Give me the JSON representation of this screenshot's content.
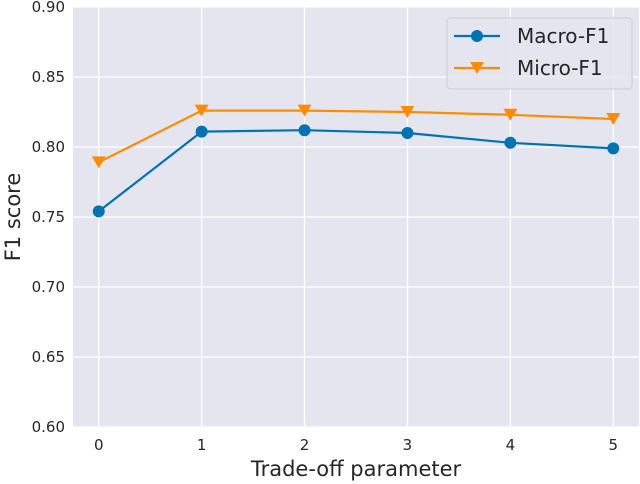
{
  "chart_data": {
    "type": "line",
    "title": "",
    "xlabel": "Trade-off parameter",
    "ylabel": "F1 score",
    "x": [
      0,
      1,
      2,
      3,
      4,
      5
    ],
    "x_tick_labels": [
      "0",
      "1",
      "2",
      "3",
      "4",
      "5"
    ],
    "y_tick_labels": [
      "0.60",
      "0.65",
      "0.70",
      "0.75",
      "0.80",
      "0.85",
      "0.90"
    ],
    "ylim": [
      0.6,
      0.9
    ],
    "xlim": [
      -0.25,
      5.25
    ],
    "grid": true,
    "legend_position": "upper right",
    "series": [
      {
        "name": "Macro-F1",
        "color": "#0173b2",
        "marker": "circle",
        "values": [
          0.754,
          0.811,
          0.812,
          0.81,
          0.803,
          0.799
        ]
      },
      {
        "name": "Micro-F1",
        "color": "#ff8c00",
        "marker": "triangle-down",
        "values": [
          0.789,
          0.826,
          0.826,
          0.825,
          0.823,
          0.82
        ]
      }
    ]
  },
  "colors": {
    "plot_background": "#e5e5ef",
    "grid": "#ffffff",
    "text": "#262626"
  }
}
